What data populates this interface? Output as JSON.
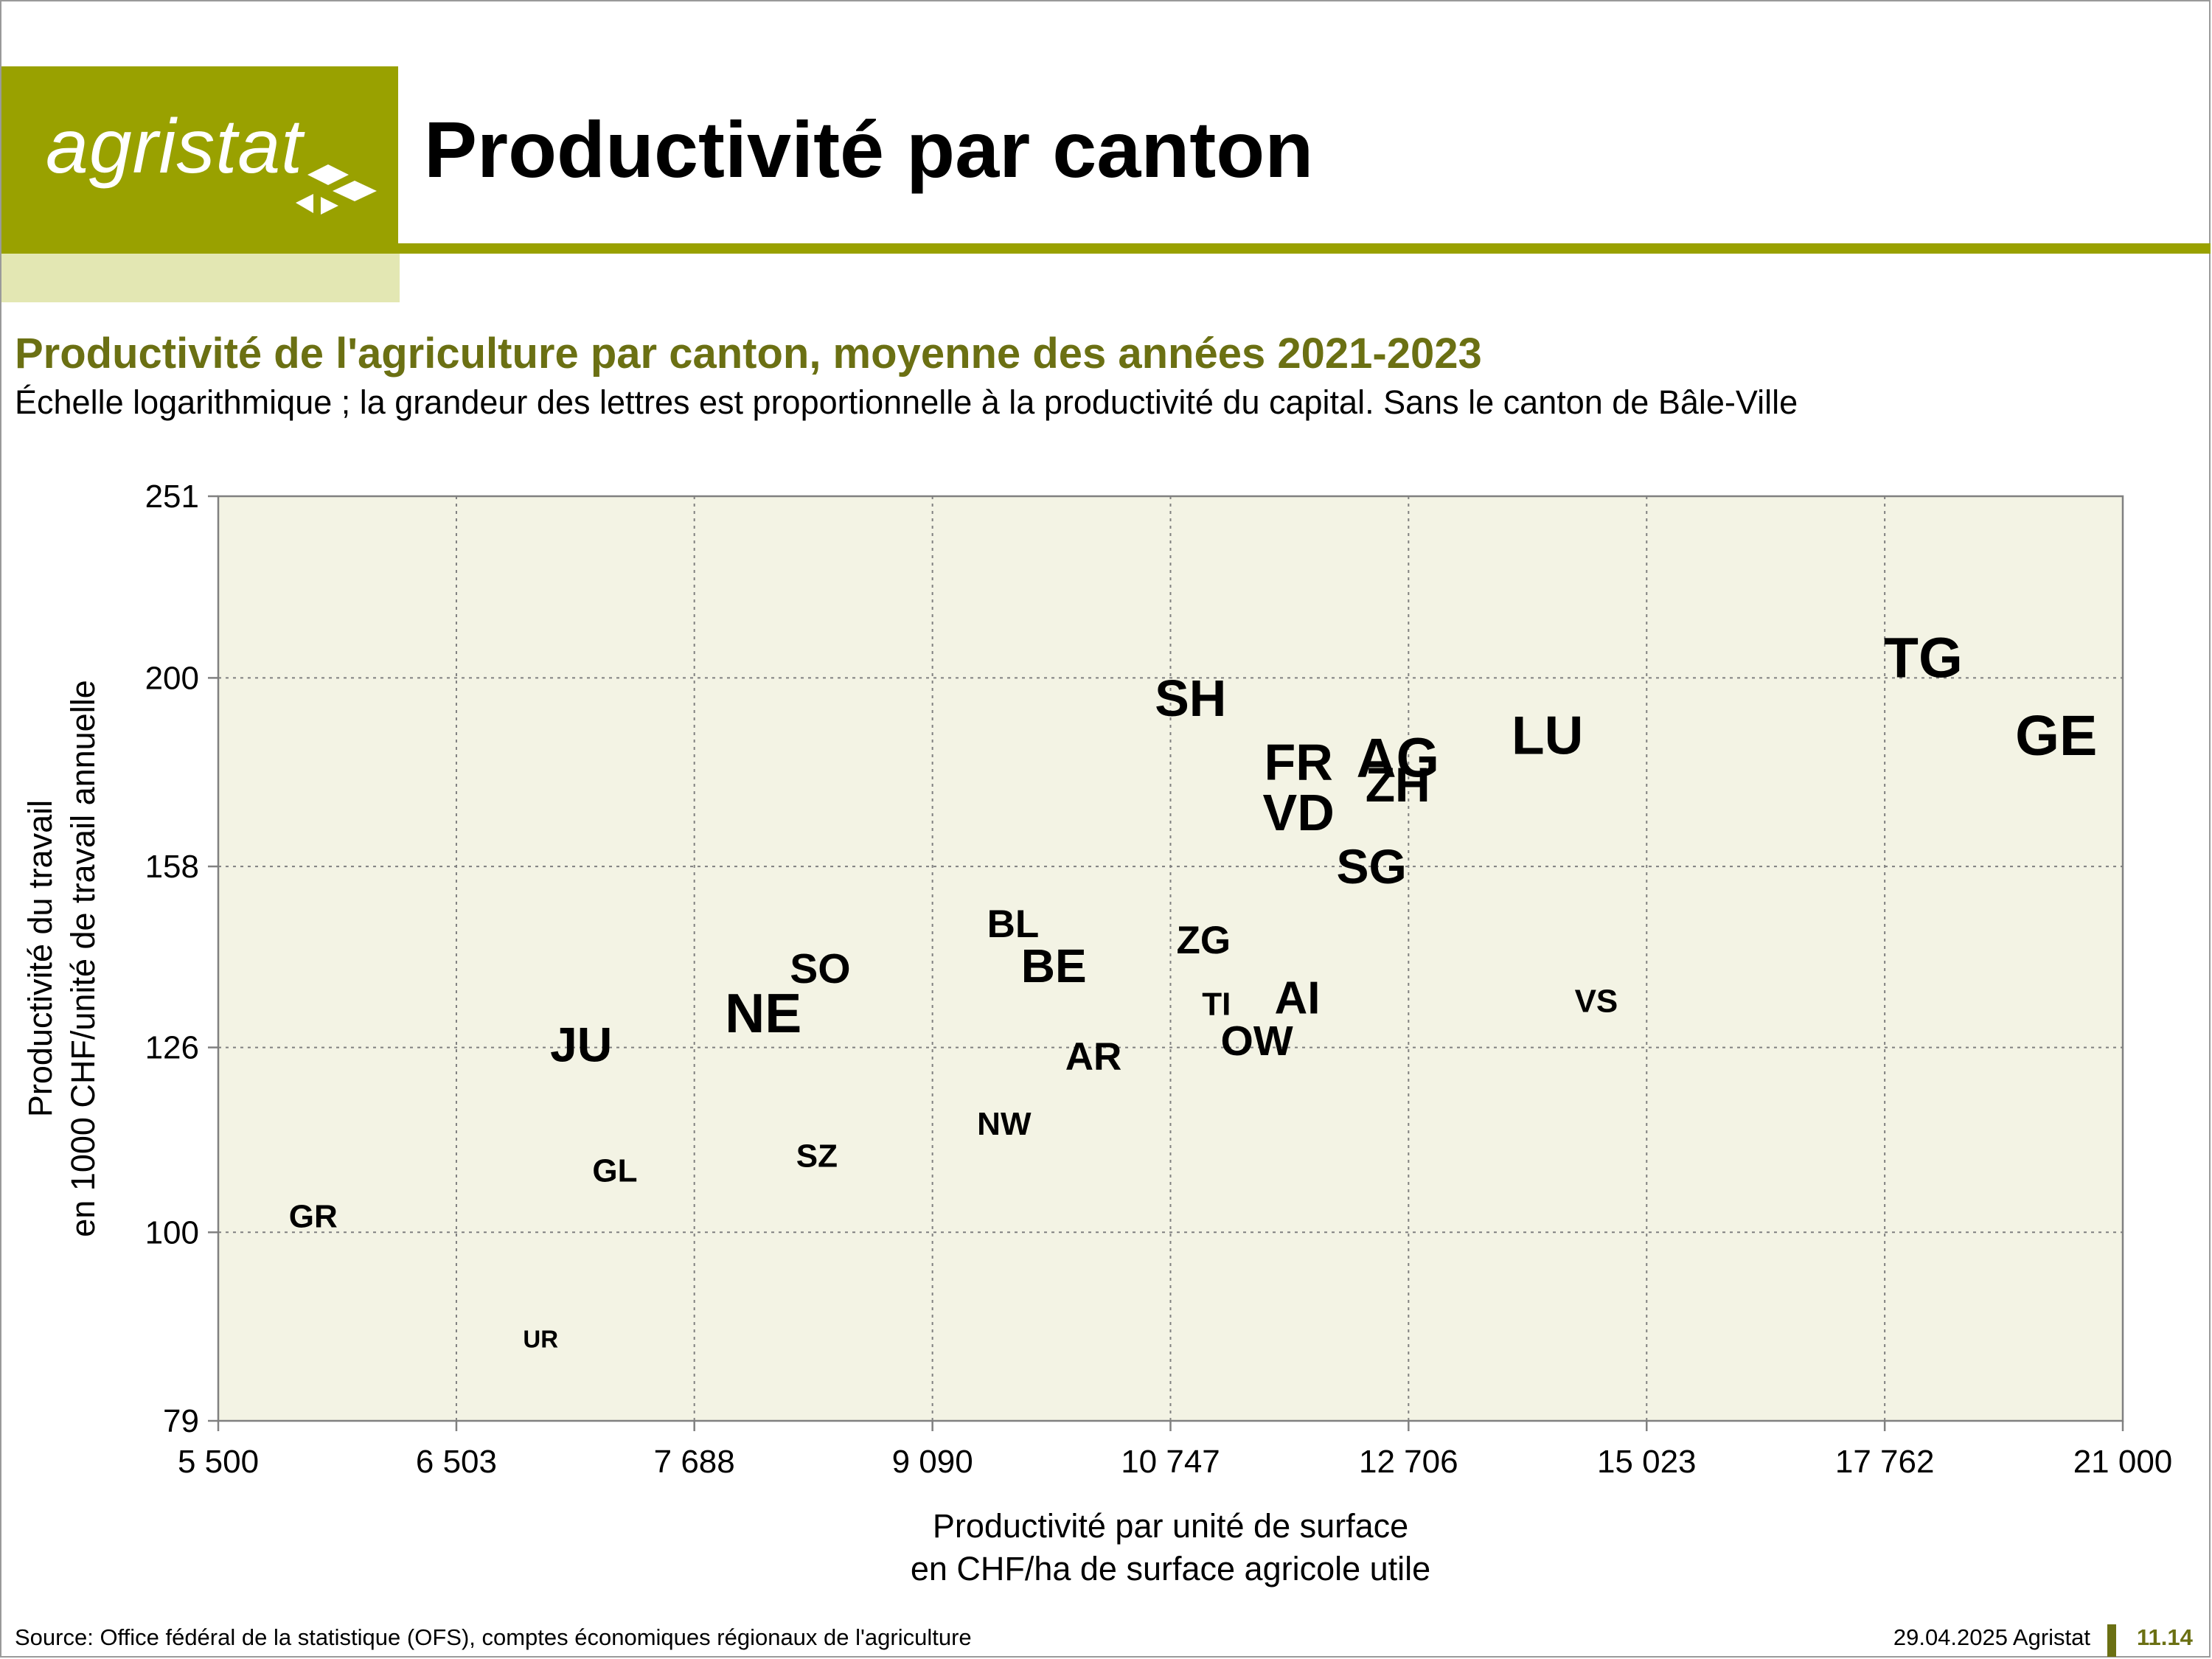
{
  "header": {
    "logo_text": "agristat",
    "title": "Productivité par canton"
  },
  "chart_data": {
    "type": "scatter",
    "title": "Productivité de l'agriculture par canton, moyenne des années 2021-2023",
    "subtitle": "Échelle logarithmique ; la grandeur des lettres est proportionnelle à la productivité du capital. Sans le canton de Bâle-Ville",
    "xlabel": [
      "Productivité par unité de surface",
      "en CHF/ha de surface agricole utile"
    ],
    "ylabel": [
      "Productivité du travail",
      "en 1000 CHF/unité de travail annuelle"
    ],
    "x_scale": "log",
    "y_scale": "log",
    "xlim": [
      5500,
      21000
    ],
    "ylim": [
      79,
      251
    ],
    "x_ticks": [
      5500,
      6503,
      7688,
      9090,
      10747,
      12706,
      15023,
      17762,
      21000
    ],
    "x_tick_labels": [
      "5 500",
      "6 503",
      "7 688",
      "9 090",
      "10 747",
      "12 706",
      "15 023",
      "17 762",
      "21 000"
    ],
    "y_ticks": [
      79,
      100,
      126,
      158,
      200,
      251
    ],
    "y_tick_labels": [
      "79",
      "100",
      "126",
      "158",
      "200",
      "251"
    ],
    "grid": true,
    "plot_background": "#f3f3e4",
    "points": [
      {
        "label": "GR",
        "x": 5880,
        "y": 102,
        "size": 1.0
      },
      {
        "label": "UR",
        "x": 6900,
        "y": 87.5,
        "size": 0.75
      },
      {
        "label": "GL",
        "x": 7270,
        "y": 108,
        "size": 1.0
      },
      {
        "label": "JU",
        "x": 7100,
        "y": 126.5,
        "size": 1.5
      },
      {
        "label": "SZ",
        "x": 8380,
        "y": 110,
        "size": 1.0
      },
      {
        "label": "NE",
        "x": 8070,
        "y": 131.5,
        "size": 1.7
      },
      {
        "label": "SO",
        "x": 8400,
        "y": 139,
        "size": 1.3
      },
      {
        "label": "NW",
        "x": 9560,
        "y": 114.5,
        "size": 1.0
      },
      {
        "label": "BL",
        "x": 9620,
        "y": 147,
        "size": 1.2
      },
      {
        "label": "BE",
        "x": 9900,
        "y": 139.5,
        "size": 1.45
      },
      {
        "label": "AR",
        "x": 10180,
        "y": 124.5,
        "size": 1.2
      },
      {
        "label": "SH",
        "x": 10900,
        "y": 195,
        "size": 1.6
      },
      {
        "label": "ZG",
        "x": 11000,
        "y": 144,
        "size": 1.2
      },
      {
        "label": "TI",
        "x": 11100,
        "y": 133,
        "size": 1.0
      },
      {
        "label": "OW",
        "x": 11420,
        "y": 127,
        "size": 1.3
      },
      {
        "label": "FR",
        "x": 11760,
        "y": 180,
        "size": 1.6
      },
      {
        "label": "VD",
        "x": 11760,
        "y": 169,
        "size": 1.6
      },
      {
        "label": "AI",
        "x": 11750,
        "y": 134,
        "size": 1.4
      },
      {
        "label": "AG",
        "x": 12610,
        "y": 181,
        "size": 1.7
      },
      {
        "label": "ZH",
        "x": 12610,
        "y": 175,
        "size": 1.5
      },
      {
        "label": "SG",
        "x": 12380,
        "y": 158,
        "size": 1.5
      },
      {
        "label": "LU",
        "x": 14010,
        "y": 186,
        "size": 1.65
      },
      {
        "label": "VS",
        "x": 14500,
        "y": 133.5,
        "size": 1.0
      },
      {
        "label": "TG",
        "x": 18250,
        "y": 205,
        "size": 1.75
      },
      {
        "label": "GE",
        "x": 20040,
        "y": 186,
        "size": 1.75
      }
    ]
  },
  "footer": {
    "source": "Source: Office fédéral de la statistique (OFS), comptes économiques régionaux de l'agriculture",
    "date": "29.04.2025 Agristat",
    "page": "11.14"
  }
}
